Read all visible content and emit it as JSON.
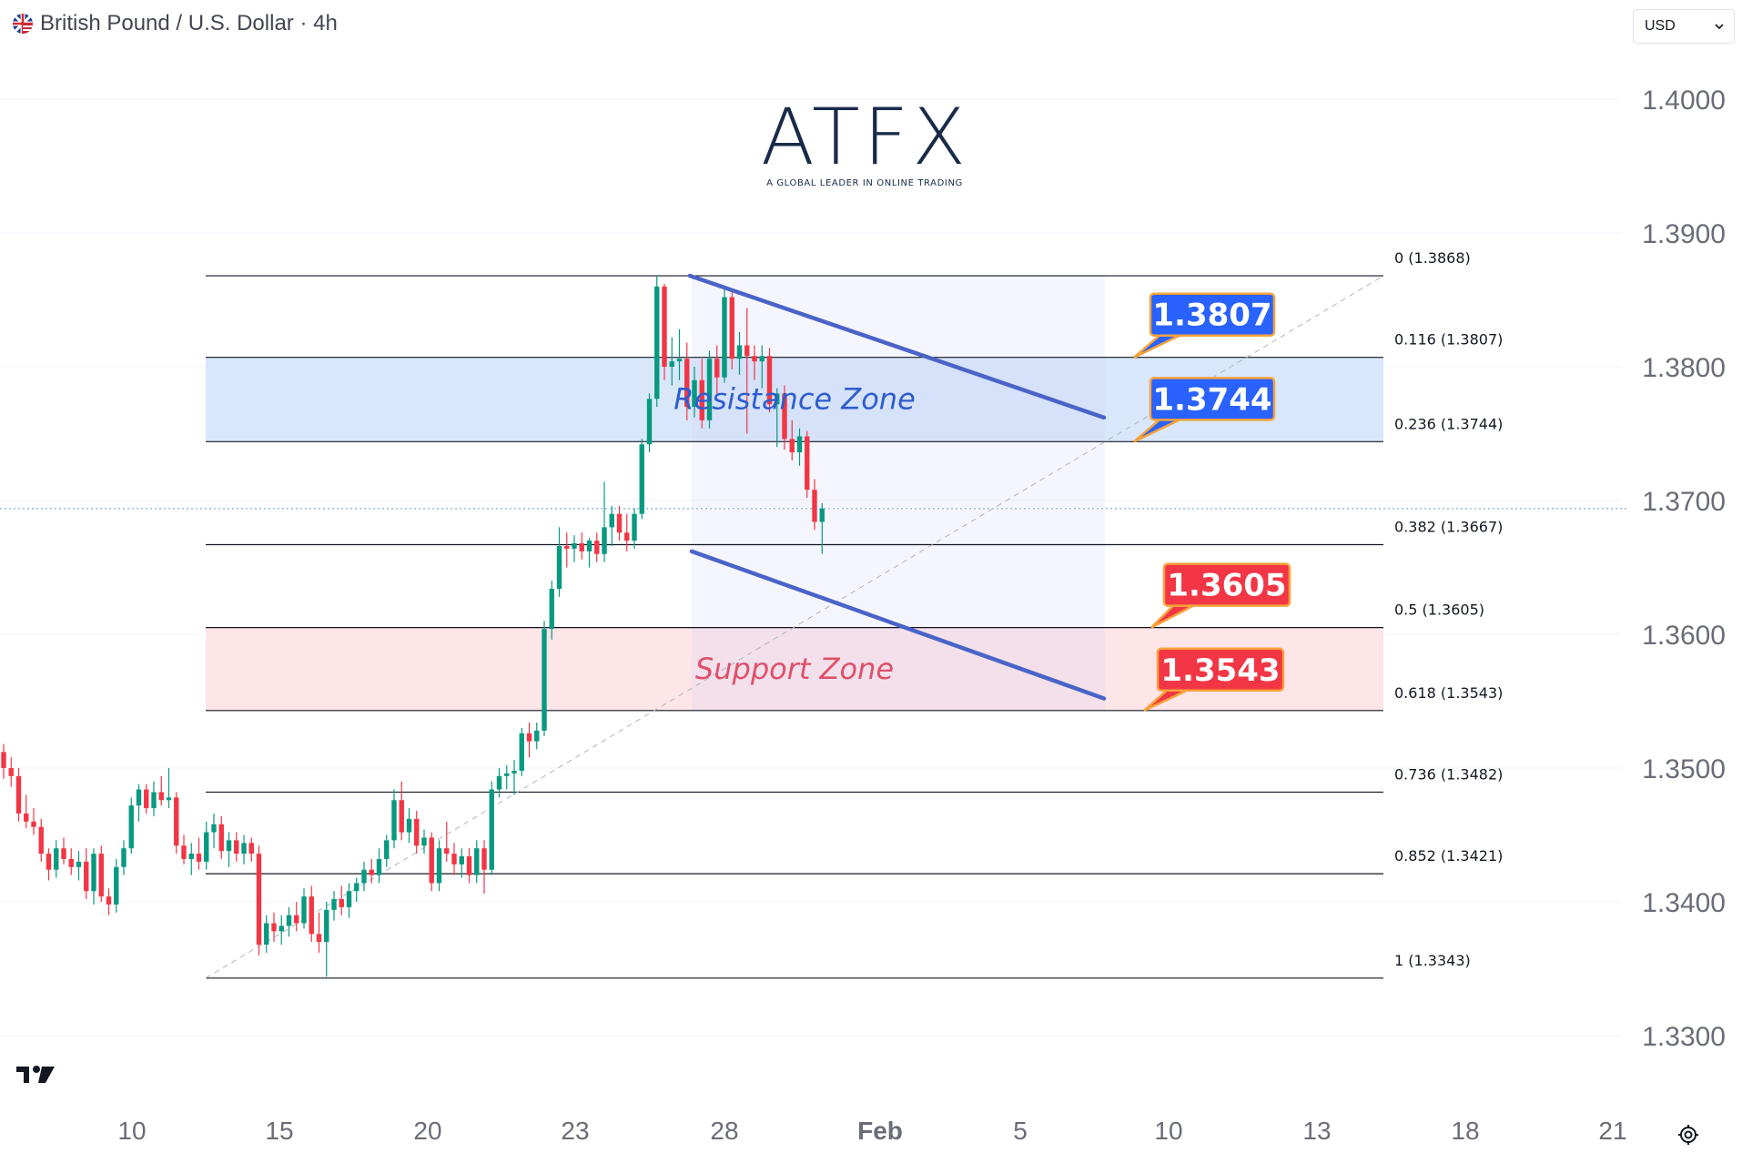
{
  "header": {
    "symbol_title": "British Pound / U.S. Dollar · 4h",
    "currency_select": "USD"
  },
  "logo": {
    "brand": "ATFX",
    "tagline": "A GLOBAL LEADER IN ONLINE TRADING"
  },
  "icons": {
    "flag": "gb-us-flag-icon",
    "dropdown": "chevron-down-icon",
    "platform": "tradingview-logo-icon",
    "settings": "settings-icon"
  },
  "colors": {
    "up": "#089981",
    "down": "#f23645",
    "resistance_fill": "#d6e6fb",
    "support_fill": "#fde4e7",
    "channel": "#4a63c8",
    "callout_blue": "#2962ff",
    "callout_red": "#f23645",
    "callout_border": "#f7a23b"
  },
  "chart_data": {
    "type": "candlestick",
    "symbol": "GBP/USD",
    "timeframe": "4h",
    "y_axis": {
      "ticks": [
        "1.4000",
        "1.3900",
        "1.3800",
        "1.3700",
        "1.3600",
        "1.3500",
        "1.3400",
        "1.3300"
      ],
      "ylim": [
        1.326,
        1.404
      ]
    },
    "x_axis": {
      "ticks": [
        "10",
        "15",
        "20",
        "23",
        "28",
        "Feb",
        "5",
        "10",
        "13",
        "18",
        "21"
      ]
    },
    "fibonacci": [
      {
        "label": "0 (1.3868)",
        "price": 1.3868
      },
      {
        "label": "0.116 (1.3807)",
        "price": 1.3807
      },
      {
        "label": "0.236 (1.3744)",
        "price": 1.3744
      },
      {
        "label": "0.382 (1.3667)",
        "price": 1.3667
      },
      {
        "label": "0.5 (1.3605)",
        "price": 1.3605
      },
      {
        "label": "0.618 (1.3543)",
        "price": 1.3543
      },
      {
        "label": "0.736 (1.3482)",
        "price": 1.3482
      },
      {
        "label": "0.852 (1.3421)",
        "price": 1.3421
      },
      {
        "label": "1 (1.3343)",
        "price": 1.3343
      }
    ],
    "zones": [
      {
        "name": "Resistance Zone",
        "from": 1.3744,
        "to": 1.3807
      },
      {
        "name": "Support Zone",
        "from": 1.3543,
        "to": 1.3605
      }
    ],
    "callouts": [
      {
        "text": "1.3807",
        "price": 1.3807,
        "kind": "resistance"
      },
      {
        "text": "1.3744",
        "price": 1.3744,
        "kind": "resistance"
      },
      {
        "text": "1.3605",
        "price": 1.3605,
        "kind": "support"
      },
      {
        "text": "1.3543",
        "price": 1.3543,
        "kind": "support"
      }
    ],
    "last_price": 1.3694,
    "candles": [
      [
        1.3512,
        1.3518,
        1.3492,
        1.35
      ],
      [
        1.35,
        1.3508,
        1.3486,
        1.3494
      ],
      [
        1.3494,
        1.35,
        1.346,
        1.3466
      ],
      [
        1.3466,
        1.348,
        1.3455,
        1.346
      ],
      [
        1.346,
        1.347,
        1.345,
        1.3456
      ],
      [
        1.3456,
        1.3462,
        1.343,
        1.3436
      ],
      [
        1.3436,
        1.344,
        1.3416,
        1.3424
      ],
      [
        1.3424,
        1.3446,
        1.3418,
        1.344
      ],
      [
        1.344,
        1.3448,
        1.3428,
        1.3432
      ],
      [
        1.3432,
        1.344,
        1.342,
        1.3426
      ],
      [
        1.3426,
        1.3438,
        1.3416,
        1.343
      ],
      [
        1.343,
        1.344,
        1.3402,
        1.3408
      ],
      [
        1.3408,
        1.344,
        1.3398,
        1.3436
      ],
      [
        1.3436,
        1.3442,
        1.34,
        1.3404
      ],
      [
        1.3404,
        1.341,
        1.339,
        1.3398
      ],
      [
        1.3398,
        1.3432,
        1.3392,
        1.3426
      ],
      [
        1.3426,
        1.3446,
        1.342,
        1.344
      ],
      [
        1.344,
        1.3478,
        1.3436,
        1.3472
      ],
      [
        1.3472,
        1.3488,
        1.346,
        1.3484
      ],
      [
        1.3484,
        1.3488,
        1.3466,
        1.347
      ],
      [
        1.347,
        1.349,
        1.3464,
        1.3482
      ],
      [
        1.3482,
        1.3494,
        1.3472,
        1.3476
      ],
      [
        1.3476,
        1.35,
        1.347,
        1.3478
      ],
      [
        1.3478,
        1.3482,
        1.3436,
        1.3442
      ],
      [
        1.3442,
        1.345,
        1.3428,
        1.3432
      ],
      [
        1.3432,
        1.3444,
        1.342,
        1.3436
      ],
      [
        1.3436,
        1.3448,
        1.3424,
        1.343
      ],
      [
        1.343,
        1.346,
        1.3424,
        1.3452
      ],
      [
        1.3452,
        1.3466,
        1.344,
        1.3458
      ],
      [
        1.3458,
        1.3464,
        1.3432,
        1.3438
      ],
      [
        1.3438,
        1.3452,
        1.3426,
        1.3446
      ],
      [
        1.3446,
        1.3452,
        1.343,
        1.3436
      ],
      [
        1.3436,
        1.345,
        1.3428,
        1.3444
      ],
      [
        1.3444,
        1.3448,
        1.343,
        1.3436
      ],
      [
        1.3436,
        1.3442,
        1.336,
        1.3368
      ],
      [
        1.3368,
        1.339,
        1.3362,
        1.3384
      ],
      [
        1.3384,
        1.3392,
        1.337,
        1.3378
      ],
      [
        1.3378,
        1.339,
        1.3368,
        1.3382
      ],
      [
        1.3382,
        1.3396,
        1.3374,
        1.339
      ],
      [
        1.339,
        1.34,
        1.3378,
        1.3384
      ],
      [
        1.3384,
        1.341,
        1.338,
        1.3404
      ],
      [
        1.3404,
        1.3412,
        1.337,
        1.3376
      ],
      [
        1.3376,
        1.3392,
        1.3362,
        1.337
      ],
      [
        1.337,
        1.34,
        1.3344,
        1.3394
      ],
      [
        1.3394,
        1.3408,
        1.3386,
        1.3402
      ],
      [
        1.3402,
        1.3412,
        1.339,
        1.3396
      ],
      [
        1.3396,
        1.3414,
        1.3388,
        1.3408
      ],
      [
        1.3408,
        1.3418,
        1.34,
        1.3414
      ],
      [
        1.3414,
        1.343,
        1.3408,
        1.3424
      ],
      [
        1.3424,
        1.3432,
        1.3414,
        1.342
      ],
      [
        1.342,
        1.344,
        1.3414,
        1.3432
      ],
      [
        1.3432,
        1.345,
        1.3426,
        1.3446
      ],
      [
        1.3446,
        1.3484,
        1.344,
        1.3476
      ],
      [
        1.3476,
        1.349,
        1.3446,
        1.3452
      ],
      [
        1.3452,
        1.347,
        1.3444,
        1.3462
      ],
      [
        1.3462,
        1.3468,
        1.3436,
        1.3442
      ],
      [
        1.3442,
        1.3454,
        1.3436,
        1.3448
      ],
      [
        1.3448,
        1.3452,
        1.3408,
        1.3414
      ],
      [
        1.3414,
        1.3446,
        1.3408,
        1.344
      ],
      [
        1.344,
        1.346,
        1.343,
        1.3436
      ],
      [
        1.3436,
        1.3444,
        1.342,
        1.3428
      ],
      [
        1.3428,
        1.344,
        1.3418,
        1.3434
      ],
      [
        1.3434,
        1.344,
        1.3414,
        1.342
      ],
      [
        1.342,
        1.3446,
        1.3414,
        1.344
      ],
      [
        1.344,
        1.3446,
        1.3406,
        1.3424
      ],
      [
        1.3424,
        1.349,
        1.342,
        1.3484
      ],
      [
        1.3484,
        1.35,
        1.3478,
        1.3494
      ],
      [
        1.3494,
        1.3502,
        1.3484,
        1.3496
      ],
      [
        1.3496,
        1.3506,
        1.348,
        1.3498
      ],
      [
        1.3498,
        1.353,
        1.3494,
        1.3526
      ],
      [
        1.3526,
        1.3534,
        1.3508,
        1.352
      ],
      [
        1.352,
        1.3534,
        1.3514,
        1.3528
      ],
      [
        1.3528,
        1.361,
        1.3524,
        1.3604
      ],
      [
        1.3604,
        1.364,
        1.3596,
        1.3634
      ],
      [
        1.3634,
        1.368,
        1.3628,
        1.3666
      ],
      [
        1.3666,
        1.3676,
        1.365,
        1.3664
      ],
      [
        1.3664,
        1.3674,
        1.3654,
        1.3668
      ],
      [
        1.3668,
        1.3676,
        1.3656,
        1.3662
      ],
      [
        1.3662,
        1.3672,
        1.365,
        1.367
      ],
      [
        1.367,
        1.3676,
        1.3654,
        1.366
      ],
      [
        1.366,
        1.3714,
        1.3654,
        1.368
      ],
      [
        1.368,
        1.3696,
        1.3666,
        1.369
      ],
      [
        1.369,
        1.3696,
        1.367,
        1.3676
      ],
      [
        1.3676,
        1.369,
        1.3662,
        1.367
      ],
      [
        1.367,
        1.3694,
        1.3664,
        1.369
      ],
      [
        1.369,
        1.3746,
        1.3686,
        1.3742
      ],
      [
        1.3742,
        1.378,
        1.3736,
        1.3776
      ],
      [
        1.3776,
        1.3868,
        1.377,
        1.386
      ],
      [
        1.386,
        1.3862,
        1.379,
        1.38
      ],
      [
        1.38,
        1.3822,
        1.3786,
        1.3804
      ],
      [
        1.3804,
        1.3828,
        1.379,
        1.3806
      ],
      [
        1.3806,
        1.3818,
        1.376,
        1.377
      ],
      [
        1.377,
        1.38,
        1.3762,
        1.379
      ],
      [
        1.379,
        1.3806,
        1.3754,
        1.376
      ],
      [
        1.376,
        1.3812,
        1.3754,
        1.3806
      ],
      [
        1.3806,
        1.3816,
        1.378,
        1.3792
      ],
      [
        1.3792,
        1.3858,
        1.3788,
        1.3852
      ],
      [
        1.3852,
        1.3856,
        1.3798,
        1.3806
      ],
      [
        1.3806,
        1.3826,
        1.3794,
        1.3816
      ],
      [
        1.3816,
        1.3844,
        1.375,
        1.3808
      ],
      [
        1.3808,
        1.3816,
        1.379,
        1.3804
      ],
      [
        1.3804,
        1.3816,
        1.3784,
        1.3808
      ],
      [
        1.3808,
        1.3814,
        1.3766,
        1.3772
      ],
      [
        1.3772,
        1.3784,
        1.374,
        1.378
      ],
      [
        1.378,
        1.3786,
        1.3738,
        1.3746
      ],
      [
        1.3746,
        1.376,
        1.373,
        1.3736
      ],
      [
        1.3736,
        1.3754,
        1.3726,
        1.3748
      ],
      [
        1.3748,
        1.3752,
        1.3702,
        1.3708
      ],
      [
        1.3708,
        1.3716,
        1.3678,
        1.3684
      ],
      [
        1.3684,
        1.3698,
        1.366,
        1.3694
      ]
    ]
  }
}
